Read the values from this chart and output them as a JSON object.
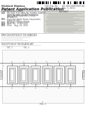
{
  "bg": "#ffffff",
  "barcode_color": "#111111",
  "header_gray": "#888888",
  "text_dark": "#333333",
  "text_mid": "#555555",
  "text_light": "#888888",
  "line_color": "#aaaaaa",
  "diag_line": "#666666",
  "diag_fill": "#f8f8f8",
  "right_block_fill": "#d8d8d0",
  "right_block_border": "#999999"
}
